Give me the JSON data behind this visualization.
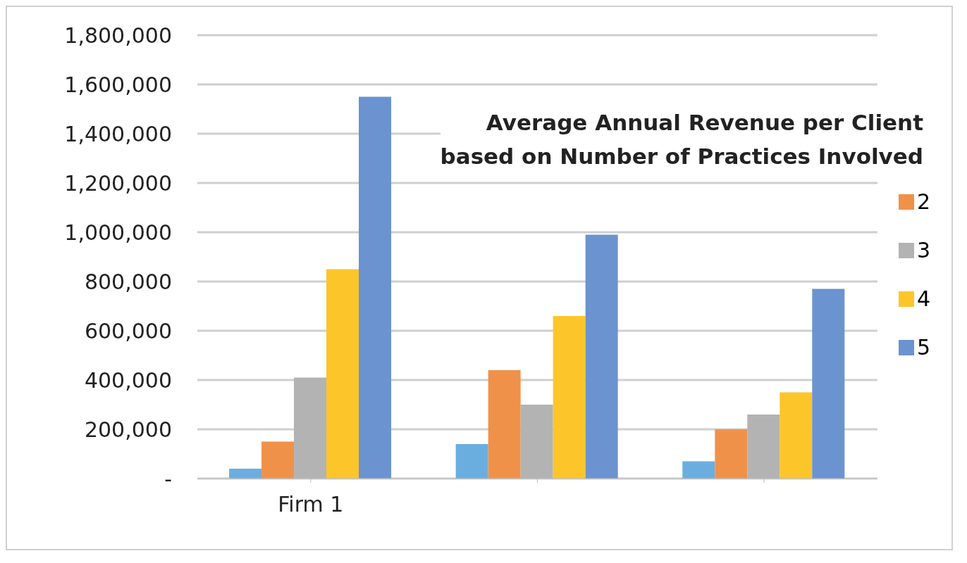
{
  "chart_data": {
    "type": "bar",
    "title": "Average Annual Revenue per Client\nbased on Number of Practices Involved",
    "categories": [
      "Firm 1",
      null,
      null
    ],
    "series": [
      {
        "color": "#6aaee0",
        "values": [
          40000,
          140000,
          70000
        ]
      },
      {
        "name": "2",
        "color": "#f0914a",
        "values": [
          150000,
          440000,
          200000
        ]
      },
      {
        "name": "3",
        "color": "#b3b3b3",
        "values": [
          410000,
          300000,
          260000
        ]
      },
      {
        "name": "4",
        "color": "#fcc52a",
        "values": [
          850000,
          660000,
          350000
        ]
      },
      {
        "name": "5",
        "color": "#6a93d0",
        "values": [
          1550000,
          990000,
          770000
        ]
      }
    ],
    "ylim": [
      0,
      1800000
    ],
    "yticks": [
      {
        "value": 0,
        "label": "-"
      },
      {
        "value": 200000,
        "label": "200,000"
      },
      {
        "value": 400000,
        "label": "400,000"
      },
      {
        "value": 600000,
        "label": "600,000"
      },
      {
        "value": 800000,
        "label": "800,000"
      },
      {
        "value": 1000000,
        "label": "1,000,000"
      },
      {
        "value": 1200000,
        "label": "1,200,000"
      },
      {
        "value": 1400000,
        "label": "1,400,000"
      },
      {
        "value": 1600000,
        "label": "1,600,000"
      },
      {
        "value": 1800000,
        "label": "1,800,000"
      }
    ],
    "grid": "y",
    "legend": "right"
  }
}
